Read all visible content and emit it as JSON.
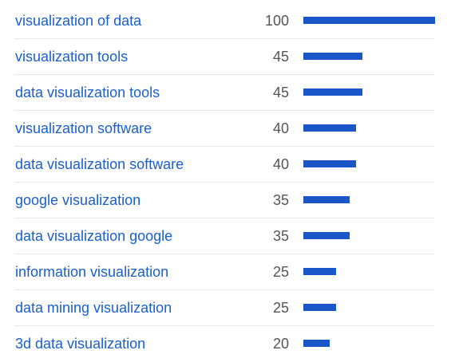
{
  "colors": {
    "link": "#1a5fcc",
    "value": "#555555",
    "bar": "#1a56c8",
    "divider": "#e6e6e6"
  },
  "queries": [
    {
      "term": "visualization of data",
      "value": "100",
      "level": 100
    },
    {
      "term": "visualization tools",
      "value": "45",
      "level": 45
    },
    {
      "term": "data visualization tools",
      "value": "45",
      "level": 45
    },
    {
      "term": "visualization software",
      "value": "40",
      "level": 40
    },
    {
      "term": "data visualization software",
      "value": "40",
      "level": 40
    },
    {
      "term": "google visualization",
      "value": "35",
      "level": 35
    },
    {
      "term": "data visualization google",
      "value": "35",
      "level": 35
    },
    {
      "term": "information visualization",
      "value": "25",
      "level": 25
    },
    {
      "term": "data mining visualization",
      "value": "25",
      "level": 25
    },
    {
      "term": "3d data visualization",
      "value": "20",
      "level": 20
    }
  ]
}
